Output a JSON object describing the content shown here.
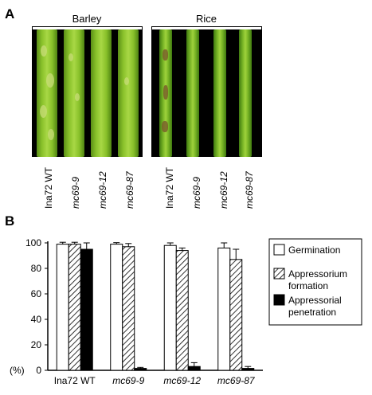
{
  "panel_a": {
    "letter": "A",
    "groups": [
      {
        "title": "Barley",
        "labels": [
          "Ina72 WT",
          "mc69-9",
          "mc69-12",
          "mc69-87"
        ]
      },
      {
        "title": "Rice",
        "labels": [
          "Ina72 WT",
          "mc69-9",
          "mc69-12",
          "mc69-87"
        ]
      }
    ]
  },
  "panel_b": {
    "letter": "B",
    "y_unit": "(%)"
  },
  "chart_data": {
    "type": "bar",
    "categories": [
      "Ina72 WT",
      "mc69-9",
      "mc69-12",
      "mc69-87"
    ],
    "series": [
      {
        "name": "Germination",
        "values": [
          99,
          99,
          98,
          96
        ],
        "errors": [
          1.5,
          1.2,
          2,
          4
        ],
        "fill": "white"
      },
      {
        "name": "Appressorium formation",
        "values": [
          99,
          97,
          94,
          87
        ],
        "errors": [
          1.5,
          2.5,
          2,
          8
        ],
        "fill": "hatch"
      },
      {
        "name": "Appressorial penetration",
        "values": [
          95,
          1.5,
          3,
          1.5
        ],
        "errors": [
          5,
          0.8,
          3,
          1.5
        ],
        "fill": "black"
      }
    ],
    "legend_lines": [
      [
        "Germination"
      ],
      [
        "Appressorium",
        "formation"
      ],
      [
        "Appressorial",
        "penetration"
      ]
    ],
    "ylim": [
      0,
      100
    ],
    "yticks": [
      0,
      20,
      40,
      60,
      80,
      100
    ],
    "ylabel": "(%)",
    "legend_position": "right",
    "grid": false
  }
}
